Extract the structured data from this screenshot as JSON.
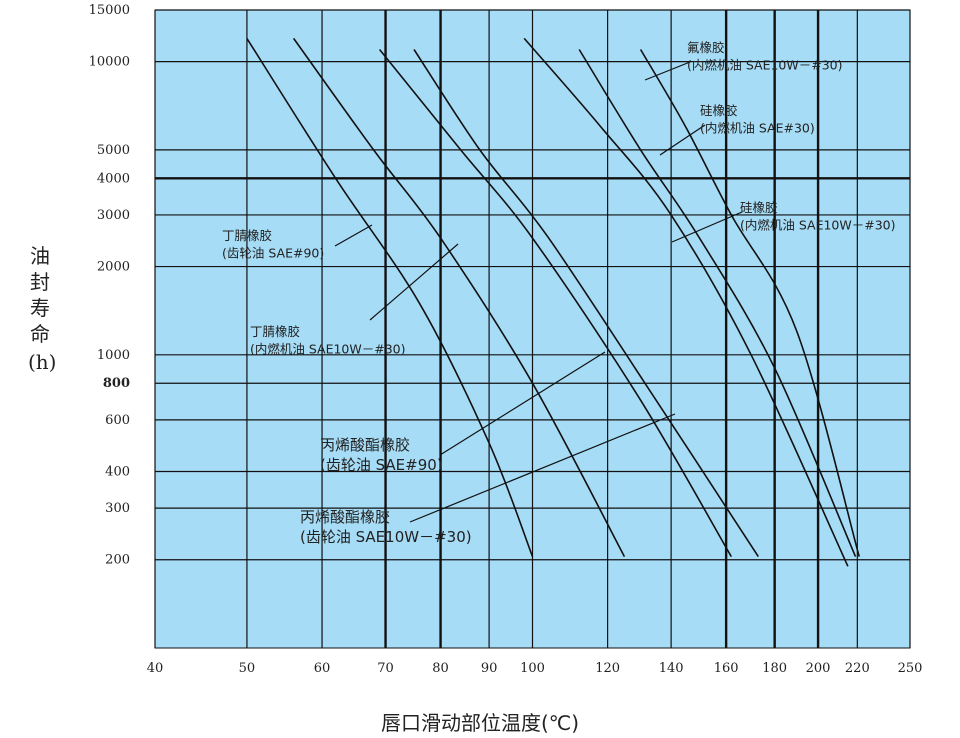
{
  "chart_data": {
    "type": "line",
    "xlabel": "唇口滑动部位温度(℃)",
    "ylabel_chars": [
      "油",
      "封",
      "寿",
      "命",
      "(h)"
    ],
    "x_scale": "log",
    "y_scale": "log",
    "xlim": [
      40,
      250
    ],
    "ylim": [
      100,
      15000
    ],
    "x_ticks": [
      40,
      50,
      60,
      70,
      80,
      90,
      100,
      120,
      140,
      160,
      180,
      200,
      220,
      250
    ],
    "y_ticks": [
      200,
      300,
      400,
      600,
      800,
      1000,
      2000,
      3000,
      4000,
      5000,
      10000,
      15000
    ],
    "background_color": "#a6dcf6",
    "grid": true,
    "series": [
      {
        "x": [
          50,
          62,
          76,
          90,
          100
        ],
        "y": [
          12000,
          4000,
          1500,
          500,
          205
        ]
      },
      {
        "x": [
          56,
          68,
          80,
          100,
          125
        ],
        "y": [
          12000,
          5000,
          2500,
          800,
          205
        ]
      },
      {
        "x": [
          69,
          84,
          100,
          130,
          162
        ],
        "y": [
          11000,
          5000,
          2500,
          700,
          205
        ]
      },
      {
        "x": [
          75,
          88,
          104,
          135,
          173
        ],
        "y": [
          11000,
          5000,
          2500,
          700,
          205
        ]
      },
      {
        "x": [
          98,
          118,
          140,
          170,
          215
        ],
        "y": [
          12000,
          6000,
          3000,
          1000,
          190
        ]
      },
      {
        "x": [
          112,
          130,
          150,
          180,
          219
        ],
        "y": [
          11000,
          5000,
          2500,
          900,
          205
        ]
      },
      {
        "x": [
          130,
          145,
          162,
          190,
          221
        ],
        "y": [
          11000,
          6000,
          3000,
          1200,
          205
        ]
      }
    ],
    "annotations": [
      {
        "lines": [
          "氟橡胶",
          "(内燃机油 SAE10W－#30)"
        ]
      },
      {
        "lines": [
          "硅橡胶",
          "(内燃机油 SAE#30)"
        ]
      },
      {
        "lines": [
          "硅橡胶",
          "(内燃机油 SAE10W－#30)"
        ]
      },
      {
        "lines": [
          "丁腈橡胶",
          "(齿轮油 SAE#90)"
        ]
      },
      {
        "lines": [
          "丁腈橡胶",
          "(内燃机油 SAE10W－#30)"
        ]
      },
      {
        "lines": [
          "丙烯酸酯橡胶",
          "(齿轮油 SAE#90)"
        ]
      },
      {
        "lines": [
          "丙烯酸酯橡胶",
          "(齿轮油 SAE10W－#30)"
        ]
      }
    ]
  }
}
